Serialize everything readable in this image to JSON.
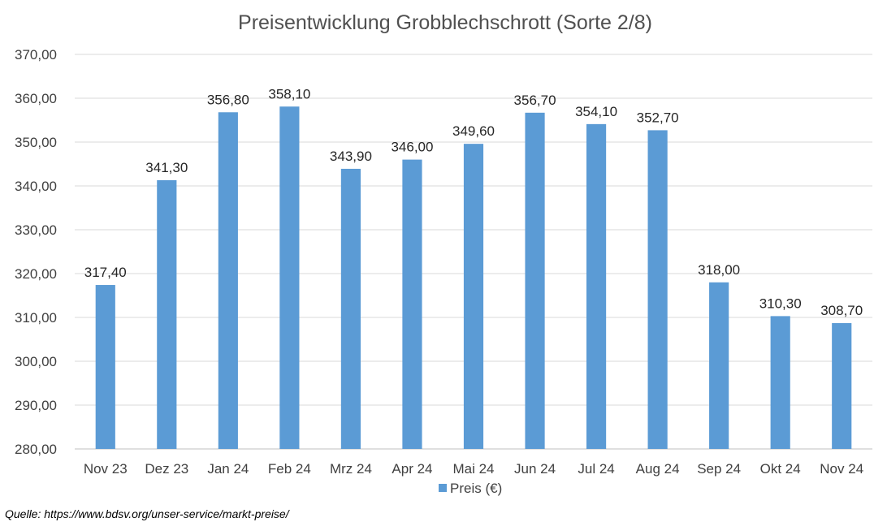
{
  "chart_data": {
    "type": "bar",
    "title": "Preisentwicklung Grobblechschrott (Sorte 2/8)",
    "categories": [
      "Nov 23",
      "Dez 23",
      "Jan 24",
      "Feb 24",
      "Mrz 24",
      "Apr 24",
      "Mai 24",
      "Jun 24",
      "Jul 24",
      "Aug 24",
      "Sep 24",
      "Okt 24",
      "Nov 24"
    ],
    "series": [
      {
        "name": "Preis (€)",
        "values": [
          317.4,
          341.3,
          356.8,
          358.1,
          343.9,
          346.0,
          349.6,
          356.7,
          354.1,
          352.7,
          318.0,
          310.3,
          308.7
        ],
        "data_labels": [
          "317,40",
          "341,30",
          "356,80",
          "358,10",
          "343,90",
          "346,00",
          "349,60",
          "356,70",
          "354,10",
          "352,70",
          "318,00",
          "310,30",
          "308,70"
        ],
        "color": "#5b9bd5"
      }
    ],
    "ylim": [
      280,
      370
    ],
    "yticks": [
      "280,00",
      "290,00",
      "300,00",
      "310,00",
      "320,00",
      "330,00",
      "340,00",
      "350,00",
      "360,00",
      "370,00"
    ],
    "grid": true,
    "legend_position": "bottom"
  },
  "source_note": "Quelle: https://www.bdsv.org/unser-service/markt-preise/"
}
